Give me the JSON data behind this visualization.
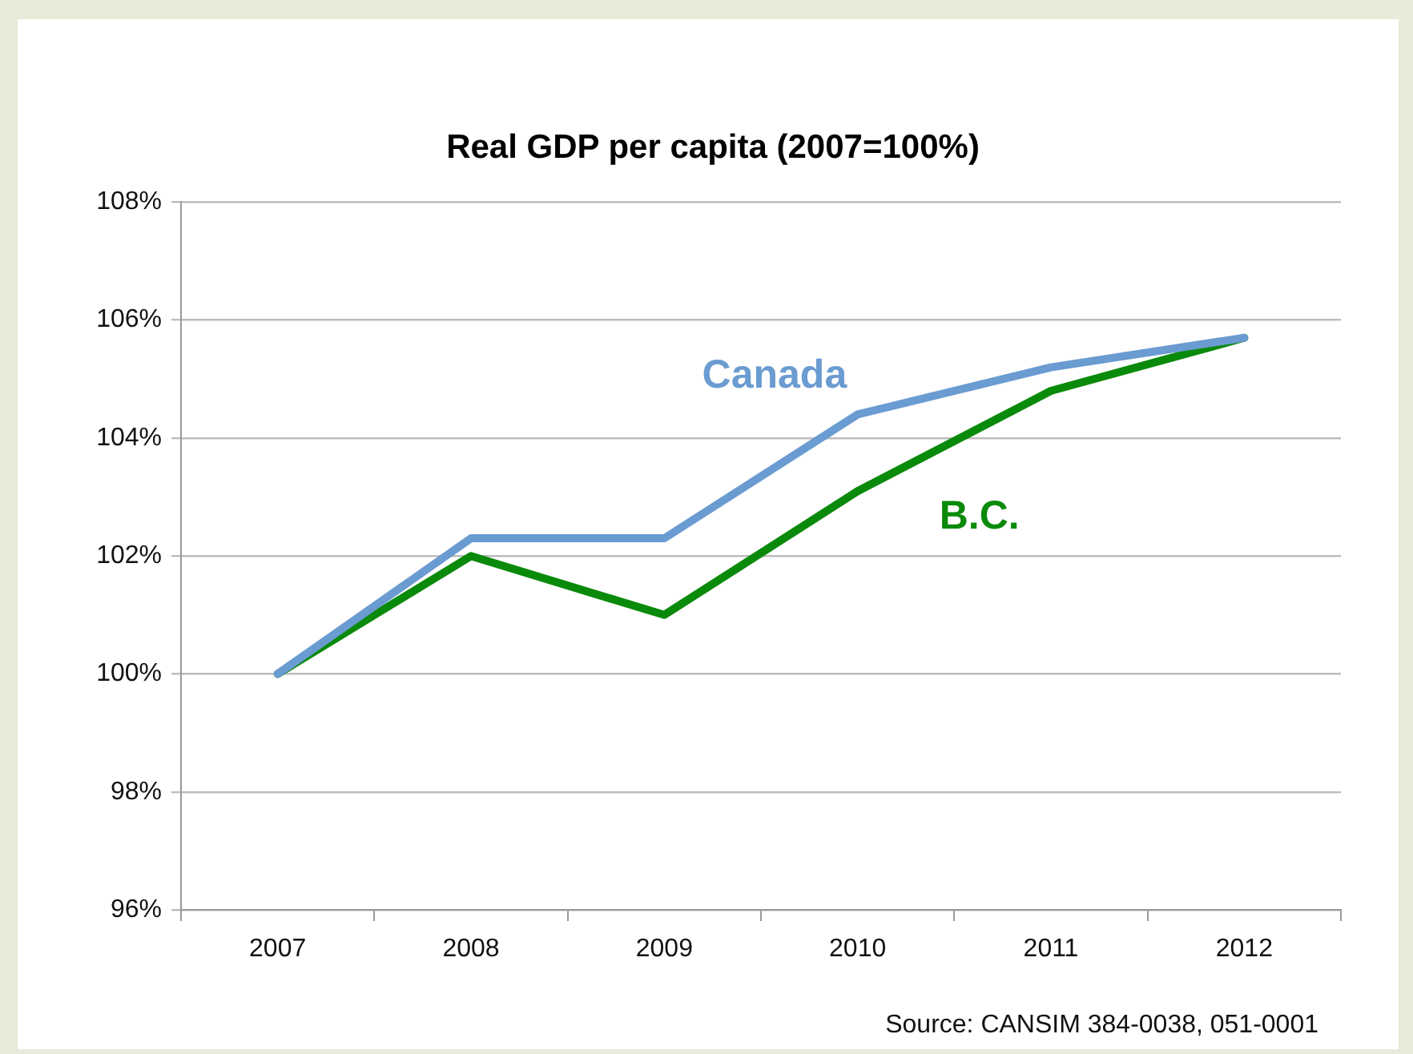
{
  "chart_data": {
    "type": "line",
    "title": "Real GDP per capita (2007=100%)",
    "categories": [
      "2007",
      "2008",
      "2009",
      "2010",
      "2011",
      "2012"
    ],
    "series": [
      {
        "name": "Canada",
        "color": "#6a9bd1",
        "values": [
          100,
          102.3,
          102.3,
          104.4,
          105.2,
          105.7
        ]
      },
      {
        "name": "B.C.",
        "color": "#0a8a0a",
        "values": [
          100,
          102.0,
          101.0,
          103.1,
          104.8,
          105.7
        ]
      }
    ],
    "ylim": [
      96,
      108
    ],
    "yticks": [
      {
        "value": 96,
        "label": "96%"
      },
      {
        "value": 98,
        "label": "98%"
      },
      {
        "value": 100,
        "label": "100%"
      },
      {
        "value": 102,
        "label": "102%"
      },
      {
        "value": 104,
        "label": "104%"
      },
      {
        "value": 106,
        "label": "106%"
      },
      {
        "value": 108,
        "label": "108%"
      }
    ],
    "grid": "y",
    "legend": false,
    "marker": "none",
    "line_style": "solid",
    "annotations": [
      "Source: CANSIM 384-0038, 051-0001"
    ]
  }
}
